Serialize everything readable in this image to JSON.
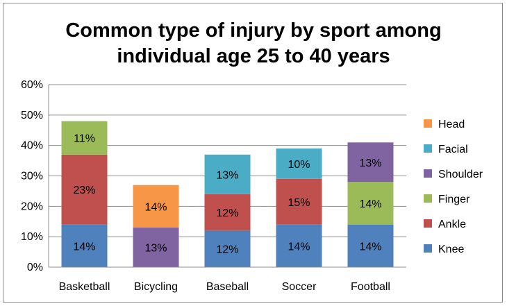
{
  "chart_data": {
    "type": "bar",
    "stacked": true,
    "title_lines": [
      "Common type of injury by sport among",
      "individual age 25 to 40 years"
    ],
    "categories": [
      "Basketball",
      "Bicycling",
      "Baseball",
      "Soccer",
      "Football"
    ],
    "ylim": [
      0,
      60
    ],
    "yticks": [
      0,
      10,
      20,
      30,
      40,
      50,
      60
    ],
    "ytick_labels": [
      "0%",
      "10%",
      "20%",
      "30%",
      "40%",
      "50%",
      "60%"
    ],
    "grid": true,
    "legend_position": "right",
    "series": [
      {
        "name": "Knee",
        "color": "#4F81BD",
        "values": [
          14,
          0,
          12,
          14,
          14
        ],
        "labels": [
          "14%",
          "",
          "12%",
          "14%",
          "14%"
        ]
      },
      {
        "name": "Ankle",
        "color": "#C0504D",
        "values": [
          23,
          0,
          12,
          15,
          0
        ],
        "labels": [
          "23%",
          "",
          "12%",
          "15%",
          ""
        ]
      },
      {
        "name": "Finger",
        "color": "#9BBB59",
        "values": [
          11,
          0,
          0,
          0,
          14
        ],
        "labels": [
          "11%",
          "",
          "",
          "",
          "14%"
        ]
      },
      {
        "name": "Shoulder",
        "color": "#8064A2",
        "values": [
          0,
          13,
          0,
          0,
          13
        ],
        "labels": [
          "",
          "13%",
          "",
          "",
          "13%"
        ]
      },
      {
        "name": "Facial",
        "color": "#4BACC6",
        "values": [
          0,
          0,
          13,
          10,
          0
        ],
        "labels": [
          "",
          "",
          "13%",
          "10%",
          ""
        ]
      },
      {
        "name": "Head",
        "color": "#F79646",
        "values": [
          0,
          14,
          0,
          0,
          0
        ],
        "labels": [
          "",
          "14%",
          "",
          "",
          ""
        ]
      }
    ],
    "legend_order": [
      "Head",
      "Facial",
      "Shoulder",
      "Finger",
      "Ankle",
      "Knee"
    ]
  }
}
